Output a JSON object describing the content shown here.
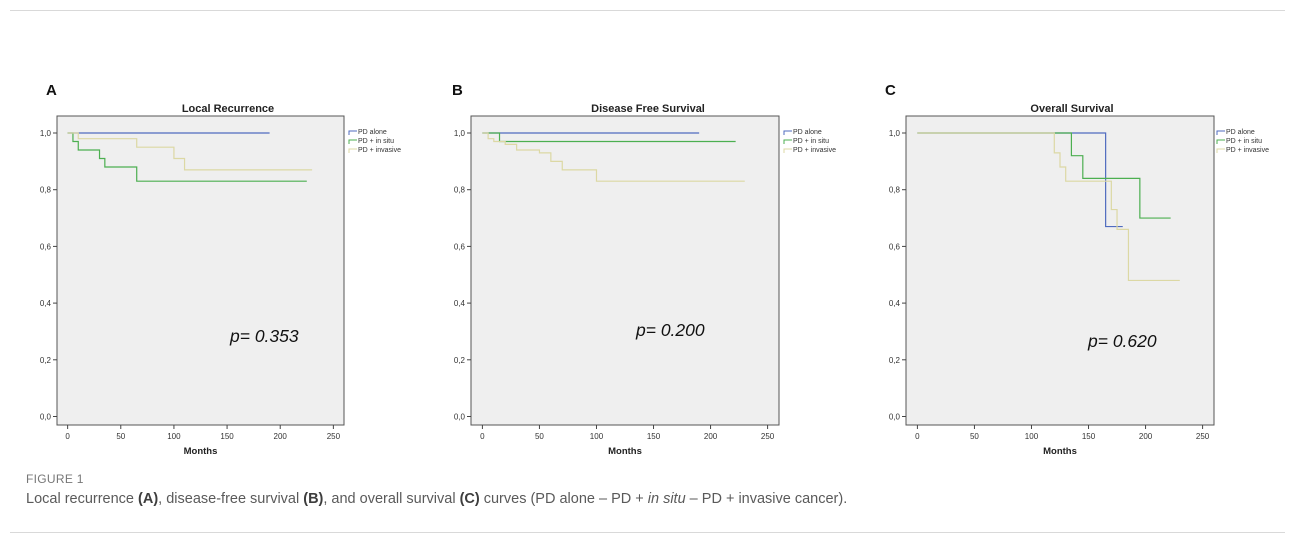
{
  "figure": {
    "label": "FIGURE 1",
    "caption": {
      "p1": "Local recurrence ",
      "a": "(A)",
      "p2": ", disease-free survival ",
      "b": "(B)",
      "p3": ", and overall survival ",
      "c": "(C)",
      "p4": " curves (PD alone – PD + ",
      "insitu": "in situ",
      "p5": " – PD + invasive cancer)."
    }
  },
  "colors": {
    "plot_background": "#efefef",
    "PD alone": "#4f6bbf",
    "PD + in situ": "#4caf50",
    "PD + invasive": "#dcd8a4"
  },
  "chart_data": [
    {
      "type": "line",
      "panel": "A",
      "title": "Local Recurrence",
      "xlabel": "Months",
      "ylabel": "",
      "xlim": [
        -10,
        260
      ],
      "ylim": [
        -0.03,
        1.06
      ],
      "xticks": [
        0,
        50,
        100,
        150,
        200,
        250
      ],
      "yticks": [
        0.0,
        0.2,
        0.4,
        0.6,
        0.8,
        1.0
      ],
      "xtick_labels": [
        "0",
        "50",
        "100",
        "150",
        "200",
        "250"
      ],
      "ytick_labels": [
        "0,0",
        "0,2",
        "0,4",
        "0,6",
        "0,8",
        "1,0"
      ],
      "annotation": "p= 0.353",
      "legend_position": "top-right",
      "step": true,
      "series": [
        {
          "name": "PD alone",
          "x": [
            0,
            190
          ],
          "y": [
            1.0,
            1.0
          ]
        },
        {
          "name": "PD + in situ",
          "x": [
            0,
            5,
            10,
            30,
            35,
            65,
            225
          ],
          "y": [
            1.0,
            0.97,
            0.94,
            0.91,
            0.88,
            0.83,
            0.83
          ]
        },
        {
          "name": "PD + invasive",
          "x": [
            0,
            10,
            65,
            100,
            110,
            230
          ],
          "y": [
            1.0,
            0.98,
            0.95,
            0.91,
            0.87,
            0.87
          ]
        }
      ]
    },
    {
      "type": "line",
      "panel": "B",
      "title": "Disease Free Survival",
      "xlabel": "Months",
      "ylabel": "",
      "xlim": [
        -10,
        260
      ],
      "ylim": [
        -0.03,
        1.06
      ],
      "xticks": [
        0,
        50,
        100,
        150,
        200,
        250
      ],
      "yticks": [
        0.0,
        0.2,
        0.4,
        0.6,
        0.8,
        1.0
      ],
      "xtick_labels": [
        "0",
        "50",
        "100",
        "150",
        "200",
        "250"
      ],
      "ytick_labels": [
        "0,0",
        "0,2",
        "0,4",
        "0,6",
        "0,8",
        "1,0"
      ],
      "annotation": "p= 0.200",
      "legend_position": "top-right",
      "step": true,
      "series": [
        {
          "name": "PD alone",
          "x": [
            0,
            190
          ],
          "y": [
            1.0,
            1.0
          ]
        },
        {
          "name": "PD + in situ",
          "x": [
            0,
            15,
            222
          ],
          "y": [
            1.0,
            0.97,
            0.97
          ]
        },
        {
          "name": "PD + invasive",
          "x": [
            0,
            5,
            10,
            20,
            30,
            50,
            60,
            70,
            100,
            230
          ],
          "y": [
            1.0,
            0.98,
            0.97,
            0.96,
            0.94,
            0.93,
            0.9,
            0.87,
            0.83,
            0.83
          ]
        }
      ]
    },
    {
      "type": "line",
      "panel": "C",
      "title": "Overall Survival",
      "xlabel": "Months",
      "ylabel": "",
      "xlim": [
        -10,
        260
      ],
      "ylim": [
        -0.03,
        1.06
      ],
      "xticks": [
        0,
        50,
        100,
        150,
        200,
        250
      ],
      "yticks": [
        0.0,
        0.2,
        0.4,
        0.6,
        0.8,
        1.0
      ],
      "xtick_labels": [
        "0",
        "50",
        "100",
        "150",
        "200",
        "250"
      ],
      "ytick_labels": [
        "0,0",
        "0,2",
        "0,4",
        "0,6",
        "0,8",
        "1,0"
      ],
      "annotation": "p= 0.620",
      "legend_position": "top-right",
      "step": true,
      "series": [
        {
          "name": "PD alone",
          "x": [
            0,
            160,
            165,
            180
          ],
          "y": [
            1.0,
            1.0,
            0.67,
            0.67
          ]
        },
        {
          "name": "PD + in situ",
          "x": [
            0,
            135,
            145,
            165,
            195,
            222
          ],
          "y": [
            1.0,
            0.92,
            0.84,
            0.84,
            0.7,
            0.7
          ]
        },
        {
          "name": "PD + invasive",
          "x": [
            0,
            120,
            125,
            130,
            155,
            170,
            175,
            185,
            230
          ],
          "y": [
            1.0,
            0.93,
            0.88,
            0.83,
            0.83,
            0.73,
            0.66,
            0.48,
            0.48
          ]
        }
      ]
    }
  ]
}
